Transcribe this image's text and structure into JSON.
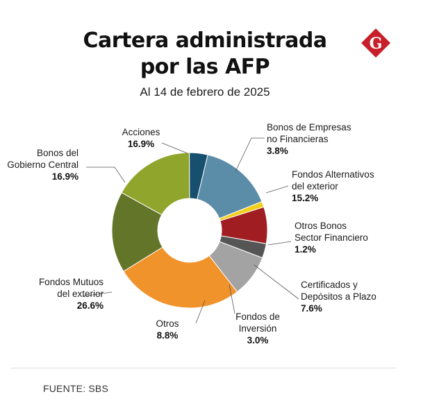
{
  "header": {
    "title_line1": "Cartera administrada",
    "title_line2": "por las AFP",
    "subtitle": "Al 14 de febrero de 2025",
    "logo_letter": "G"
  },
  "footer": {
    "source": "FUENTE: SBS"
  },
  "colors": {
    "logo": "#c8202a"
  },
  "chart_data": {
    "type": "pie",
    "style": "donut",
    "slices": [
      {
        "label": [
          "Acciones"
        ],
        "value": 16.9,
        "value_label": "16.9%",
        "color": "#8fa52b"
      },
      {
        "label": [
          "Bonos de Empresas",
          "no Financieras"
        ],
        "value": 3.8,
        "value_label": "3.8%",
        "color": "#17506f"
      },
      {
        "label": [
          "Fondos Alternativos",
          "del exterior"
        ],
        "value": 15.2,
        "value_label": "15.2%",
        "color": "#5b8ca8"
      },
      {
        "label": [
          "Otros Bonos",
          "Sector Financiero"
        ],
        "value": 1.2,
        "value_label": "1.2%",
        "color": "#f2cf1a"
      },
      {
        "label": [
          "Certificados y",
          "Depósitos a Plazo"
        ],
        "value": 7.6,
        "value_label": "7.6%",
        "color": "#a01d22"
      },
      {
        "label": [
          "Fondos de",
          "Inversión"
        ],
        "value": 3.0,
        "value_label": "3.0%",
        "color": "#555555"
      },
      {
        "label": [
          "Otros"
        ],
        "value": 8.8,
        "value_label": "8.8%",
        "color": "#a3a3a3"
      },
      {
        "label": [
          "Fondos Mutuos",
          "del exterior"
        ],
        "value": 26.6,
        "value_label": "26.6%",
        "color": "#f0932b"
      },
      {
        "label": [
          "Bonos del",
          "Gobierno Central"
        ],
        "value": 16.9,
        "value_label": "16.9%",
        "color": "#627528"
      }
    ]
  }
}
